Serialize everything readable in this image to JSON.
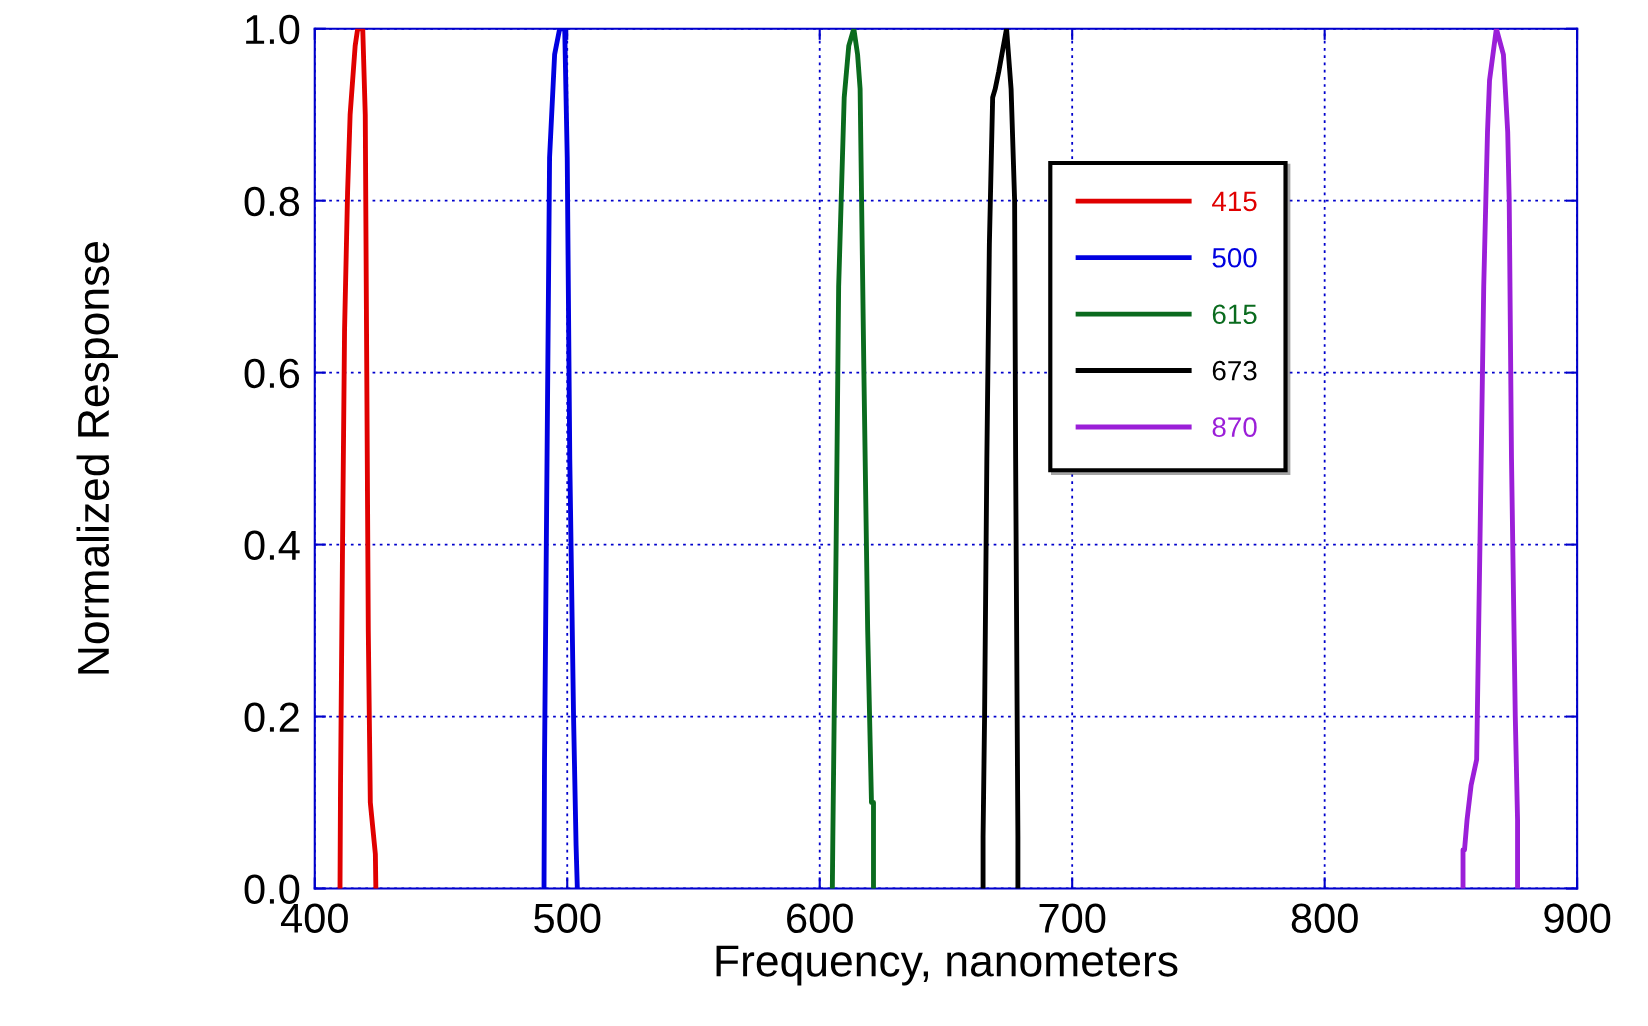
{
  "chart_data": {
    "type": "line",
    "xlabel": "Frequency, nanometers",
    "ylabel": "Normalized Response",
    "xlim": [
      400,
      900
    ],
    "xticks": [
      400,
      500,
      600,
      700,
      800,
      900
    ],
    "ylim": [
      0.0,
      1.0
    ],
    "yticks": [
      {
        "value": 0,
        "label": "0.0"
      },
      {
        "value": 0.2,
        "label": "0.2"
      },
      {
        "value": 0.4,
        "label": "0.4"
      },
      {
        "value": 0.6,
        "label": "0.6"
      },
      {
        "value": 0.8,
        "label": "0.8"
      },
      {
        "value": 1.0,
        "label": "1.0"
      }
    ],
    "grid": true,
    "legend": "top right",
    "line_style": "solid",
    "marker": "none",
    "series": [
      {
        "name": "415",
        "color": "#e00000",
        "x": [
          410,
          410.2,
          411,
          411.8,
          413,
          414,
          416,
          417,
          419,
          420,
          420.6,
          421.2,
          422,
          424,
          424.2
        ],
        "values": [
          0,
          0.12,
          0.4,
          0.65,
          0.81,
          0.9,
          0.98,
          1.0,
          1.0,
          0.9,
          0.6,
          0.3,
          0.1,
          0.04,
          0
        ]
      },
      {
        "name": "500",
        "color": "#0000e0",
        "x": [
          490.8,
          491,
          492,
          493,
          495,
          497,
          499,
          500,
          501,
          502.5,
          503.5,
          504
        ],
        "values": [
          0,
          0.15,
          0.5,
          0.85,
          0.97,
          1.0,
          1.0,
          0.85,
          0.5,
          0.2,
          0.05,
          0
        ]
      },
      {
        "name": "615",
        "color": "#0a6b1e",
        "x": [
          605,
          605.2,
          606.5,
          607.5,
          609.7,
          611.5,
          613.5,
          615,
          616,
          617.5,
          619,
          620.5,
          621.3,
          621.3
        ],
        "values": [
          0,
          0.06,
          0.4,
          0.7,
          0.92,
          0.98,
          1.0,
          0.97,
          0.93,
          0.6,
          0.3,
          0.1,
          0.1,
          0
        ]
      },
      {
        "name": "673",
        "color": "#000000",
        "x": [
          664.7,
          664.7,
          665.3,
          666.2,
          667.2,
          668.5,
          669.5,
          670.9,
          674,
          675.8,
          677.2,
          677.6,
          678.2,
          678.5,
          678.5
        ],
        "values": [
          0,
          0.06,
          0.2,
          0.5,
          0.75,
          0.92,
          0.93,
          0.95,
          1.0,
          0.93,
          0.8,
          0.5,
          0.2,
          0.06,
          0
        ]
      },
      {
        "name": "870",
        "color": "#9b1fd8",
        "x": [
          854.8,
          854.8,
          855.4,
          856.4,
          858,
          860.2,
          861.5,
          863,
          864.5,
          865.3,
          868,
          870.8,
          872.5,
          873.1,
          874,
          875.5,
          876.4,
          876.4
        ],
        "values": [
          0,
          0.045,
          0.045,
          0.08,
          0.12,
          0.15,
          0.4,
          0.7,
          0.88,
          0.94,
          1.0,
          0.97,
          0.88,
          0.8,
          0.5,
          0.2,
          0.08,
          0
        ]
      }
    ]
  }
}
